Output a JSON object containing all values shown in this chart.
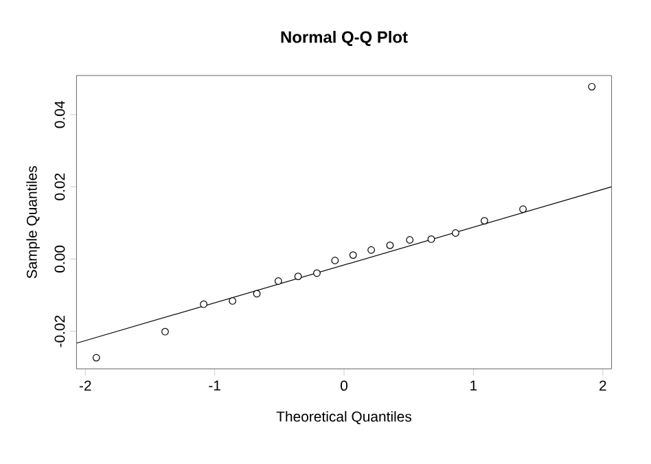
{
  "chart_data": {
    "type": "scatter",
    "title": "Normal Q-Q Plot",
    "xlabel": "Theoretical Quantiles",
    "ylabel": "Sample Quantiles",
    "series": [
      {
        "marker": "circle",
        "color": "#000000",
        "x": [
          -1.915,
          -1.383,
          -1.085,
          -0.862,
          -0.674,
          -0.508,
          -0.355,
          -0.21,
          -0.07,
          0.07,
          0.21,
          0.355,
          0.508,
          0.674,
          0.862,
          1.085,
          1.383,
          1.915
        ],
        "values": [
          -0.0273,
          -0.0201,
          -0.0125,
          -0.0116,
          -0.0096,
          -0.0061,
          -0.0048,
          -0.0039,
          -0.0004,
          0.0011,
          0.0025,
          0.0038,
          0.0053,
          0.0055,
          0.0072,
          0.0106,
          0.0138,
          0.0477
        ]
      },
      {
        "type": "line",
        "marker": "none",
        "color": "#000000",
        "x": [
          -2.068,
          2.068
        ],
        "values": [
          -0.0233,
          0.02
        ]
      }
    ],
    "line_style": "solid",
    "xlim": [
      -2.068,
      2.068
    ],
    "ylim": [
      -0.0304,
      0.0508
    ],
    "xticks": [
      -2,
      -1,
      0,
      1,
      2
    ],
    "yticks": [
      {
        "value": -0.02,
        "label": "-0.02"
      },
      {
        "value": 0.0,
        "label": "0.00"
      },
      {
        "value": 0.02,
        "label": "0.02"
      },
      {
        "value": 0.04,
        "label": "0.04"
      }
    ],
    "grid": false
  }
}
